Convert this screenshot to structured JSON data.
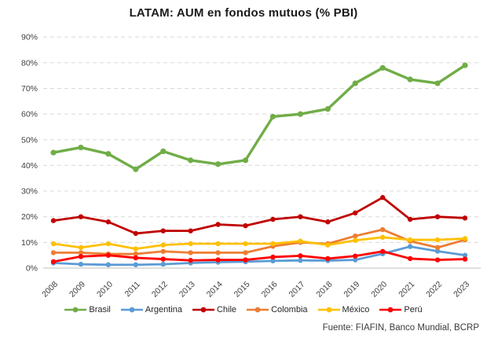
{
  "chart_data": {
    "type": "line",
    "title": "LATAM: AUM en fondos mutuos (% PBI)",
    "x": [
      2008,
      2009,
      2010,
      2011,
      2012,
      2013,
      2014,
      2015,
      2016,
      2017,
      2018,
      2019,
      2020,
      2021,
      2022,
      2023
    ],
    "ylim": [
      0,
      90
    ],
    "ytick_step": 10,
    "ytick_suffix": "%",
    "grid": "horizontal-dashed",
    "legend_position": "bottom",
    "series": [
      {
        "name": "Brasil",
        "color": "#70AD47",
        "values": [
          45,
          47,
          44.5,
          38.5,
          45.5,
          42,
          40.5,
          42,
          59,
          60,
          62,
          72,
          78,
          73.5,
          72,
          79
        ]
      },
      {
        "name": "Argentina",
        "color": "#5B9BD5",
        "values": [
          2,
          1.5,
          1.3,
          1.3,
          1.5,
          2,
          2.3,
          2.5,
          2.8,
          3,
          2.9,
          3.2,
          5.6,
          8.4,
          6.6,
          5
        ]
      },
      {
        "name": "Chile",
        "color": "#C00000",
        "values": [
          18.5,
          20,
          18,
          13.5,
          14.5,
          14.5,
          17,
          16.5,
          19,
          20,
          18,
          21.5,
          27.5,
          19,
          20,
          19.5
        ]
      },
      {
        "name": "Colombia",
        "color": "#ED7D31",
        "values": [
          6,
          6,
          5.5,
          5.5,
          6.5,
          6,
          6,
          6,
          8.5,
          10,
          9.5,
          12.5,
          15,
          10.5,
          8,
          11
        ]
      },
      {
        "name": "México",
        "color": "#FFC000",
        "values": [
          9.5,
          8,
          9.5,
          7.5,
          9,
          9.5,
          9.5,
          9.5,
          9.5,
          10.5,
          9,
          10.8,
          12,
          11,
          11,
          11.5
        ]
      },
      {
        "name": "Perú",
        "color": "#FF0000",
        "values": [
          2.5,
          4.5,
          5,
          4,
          3.5,
          3,
          3.2,
          3.2,
          4.3,
          4.8,
          3.7,
          4.7,
          6.5,
          3.7,
          3.2,
          3.5
        ]
      }
    ],
    "source": "Fuente: FIAFIN, Banco Mundial, BCRP"
  },
  "colors": {
    "gridline": "#d9d9d9",
    "axis_line": "#bfbfbf",
    "tick_label": "#404040"
  }
}
